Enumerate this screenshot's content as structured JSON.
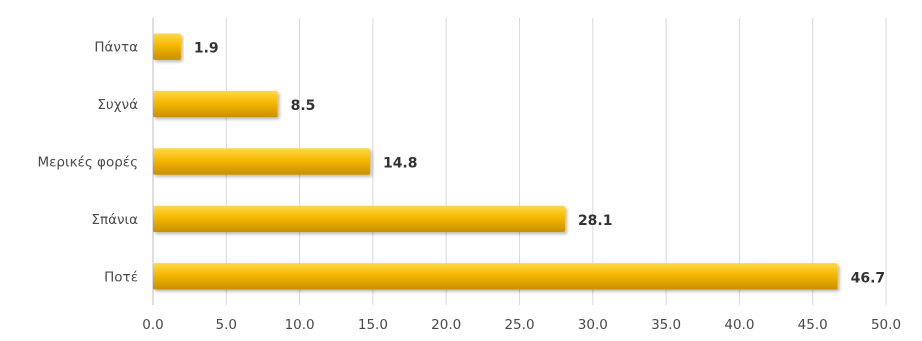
{
  "chart_data": {
    "type": "bar",
    "orientation": "horizontal",
    "categories": [
      "Πάντα",
      "Συχνά",
      "Μερικές φορές",
      "Σπάνια",
      "Ποτέ"
    ],
    "values": [
      1.9,
      8.5,
      14.8,
      28.1,
      46.7
    ],
    "data_labels": [
      "1.9",
      "8.5",
      "14.8",
      "28.1",
      "46.7"
    ],
    "xlim": [
      0,
      50
    ],
    "xticks": [
      0,
      5,
      10,
      15,
      20,
      25,
      30,
      35,
      40,
      45,
      50
    ],
    "xtick_labels": [
      "0.0",
      "5.0",
      "10.0",
      "15.0",
      "20.0",
      "25.0",
      "30.0",
      "35.0",
      "40.0",
      "45.0",
      "50.0"
    ],
    "grid": true,
    "bar_color": "#f5b800",
    "bar_highlight_color": "#ffd84a",
    "bar_shadow_color": "#c98f00"
  }
}
